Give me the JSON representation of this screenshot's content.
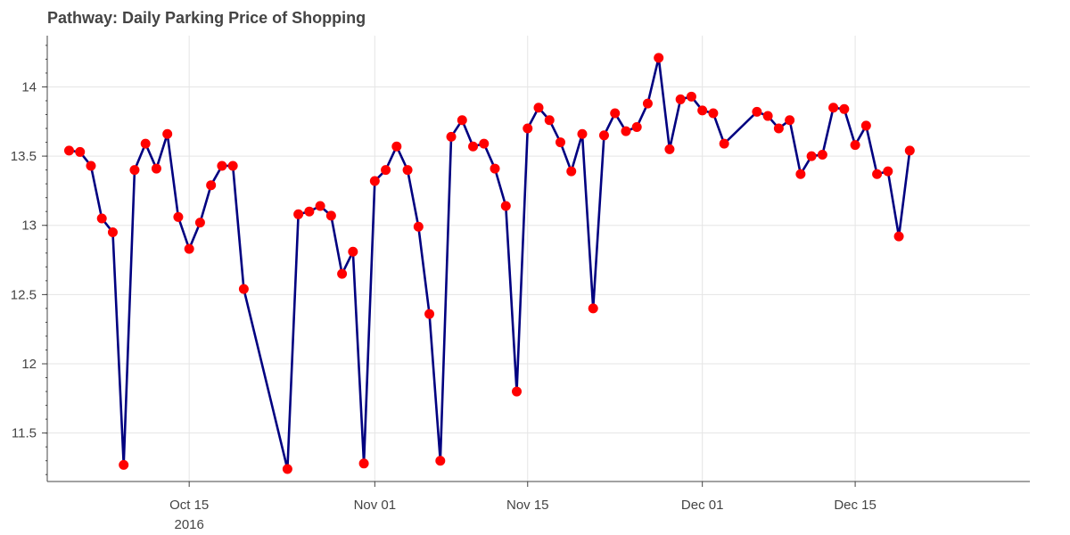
{
  "chart_data": {
    "type": "line",
    "title": "Pathway: Daily Parking Price of Shopping",
    "xlabel": "",
    "ylabel": "",
    "x_axis": {
      "type": "datetime",
      "range": [
        "2016-10-02",
        "2016-12-31"
      ],
      "ticks": [
        {
          "date": "2016-10-15",
          "label": "Oct 15",
          "sublabel": "2016"
        },
        {
          "date": "2016-11-01",
          "label": "Nov 01",
          "sublabel": ""
        },
        {
          "date": "2016-11-15",
          "label": "Nov 15",
          "sublabel": ""
        },
        {
          "date": "2016-12-01",
          "label": "Dec 01",
          "sublabel": ""
        },
        {
          "date": "2016-12-15",
          "label": "Dec 15",
          "sublabel": ""
        }
      ]
    },
    "y_axis": {
      "range": [
        11.15,
        14.37
      ],
      "ticks": [
        11.5,
        12,
        12.5,
        13,
        13.5,
        14
      ],
      "tick_labels": [
        "11.5",
        "12",
        "12.5",
        "13",
        "13.5",
        "14"
      ],
      "minor_step": 0.1
    },
    "grid": true,
    "legend": "none",
    "colors": {
      "line": "#000080",
      "marker": "#ff0000",
      "grid": "#e5e5e5",
      "axis": "#444444"
    },
    "series": [
      {
        "x": [
          "2016-10-04",
          "2016-10-05",
          "2016-10-06",
          "2016-10-07",
          "2016-10-08",
          "2016-10-09",
          "2016-10-10",
          "2016-10-11",
          "2016-10-12",
          "2016-10-13",
          "2016-10-14",
          "2016-10-15",
          "2016-10-16",
          "2016-10-17",
          "2016-10-18",
          "2016-10-19",
          "2016-10-20",
          "2016-10-24",
          "2016-10-25",
          "2016-10-26",
          "2016-10-27",
          "2016-10-28",
          "2016-10-29",
          "2016-10-30",
          "2016-10-31",
          "2016-11-01",
          "2016-11-02",
          "2016-11-03",
          "2016-11-04",
          "2016-11-05",
          "2016-11-06",
          "2016-11-07",
          "2016-11-08",
          "2016-11-09",
          "2016-11-10",
          "2016-11-11",
          "2016-11-12",
          "2016-11-13",
          "2016-11-14",
          "2016-11-15",
          "2016-11-16",
          "2016-11-17",
          "2016-11-18",
          "2016-11-19",
          "2016-11-20",
          "2016-11-21",
          "2016-11-22",
          "2016-11-23",
          "2016-11-24",
          "2016-11-25",
          "2016-11-26",
          "2016-11-27",
          "2016-11-28",
          "2016-11-29",
          "2016-11-30",
          "2016-12-01",
          "2016-12-02",
          "2016-12-03",
          "2016-12-06",
          "2016-12-07",
          "2016-12-08",
          "2016-12-09",
          "2016-12-10",
          "2016-12-11",
          "2016-12-12",
          "2016-12-13",
          "2016-12-14",
          "2016-12-15",
          "2016-12-16",
          "2016-12-17",
          "2016-12-18",
          "2016-12-19",
          "2016-12-20"
        ],
        "y": [
          13.54,
          13.53,
          13.43,
          13.05,
          12.95,
          11.27,
          13.4,
          13.59,
          13.41,
          13.66,
          13.06,
          12.83,
          13.02,
          13.29,
          13.43,
          13.43,
          12.54,
          11.24,
          13.08,
          13.1,
          13.14,
          13.07,
          12.65,
          12.81,
          11.28,
          13.32,
          13.4,
          13.57,
          13.4,
          12.99,
          12.36,
          11.3,
          13.64,
          13.76,
          13.57,
          13.59,
          13.41,
          13.14,
          11.8,
          13.7,
          13.85,
          13.76,
          13.6,
          13.39,
          13.66,
          12.4,
          13.65,
          13.81,
          13.68,
          13.71,
          13.88,
          14.21,
          13.55,
          13.91,
          13.93,
          13.83,
          13.81,
          13.59,
          13.82,
          13.79,
          13.7,
          13.76,
          13.37,
          13.5,
          13.51,
          13.85,
          13.84,
          13.58,
          13.72,
          13.37,
          13.39,
          12.92,
          13.54
        ]
      }
    ]
  }
}
